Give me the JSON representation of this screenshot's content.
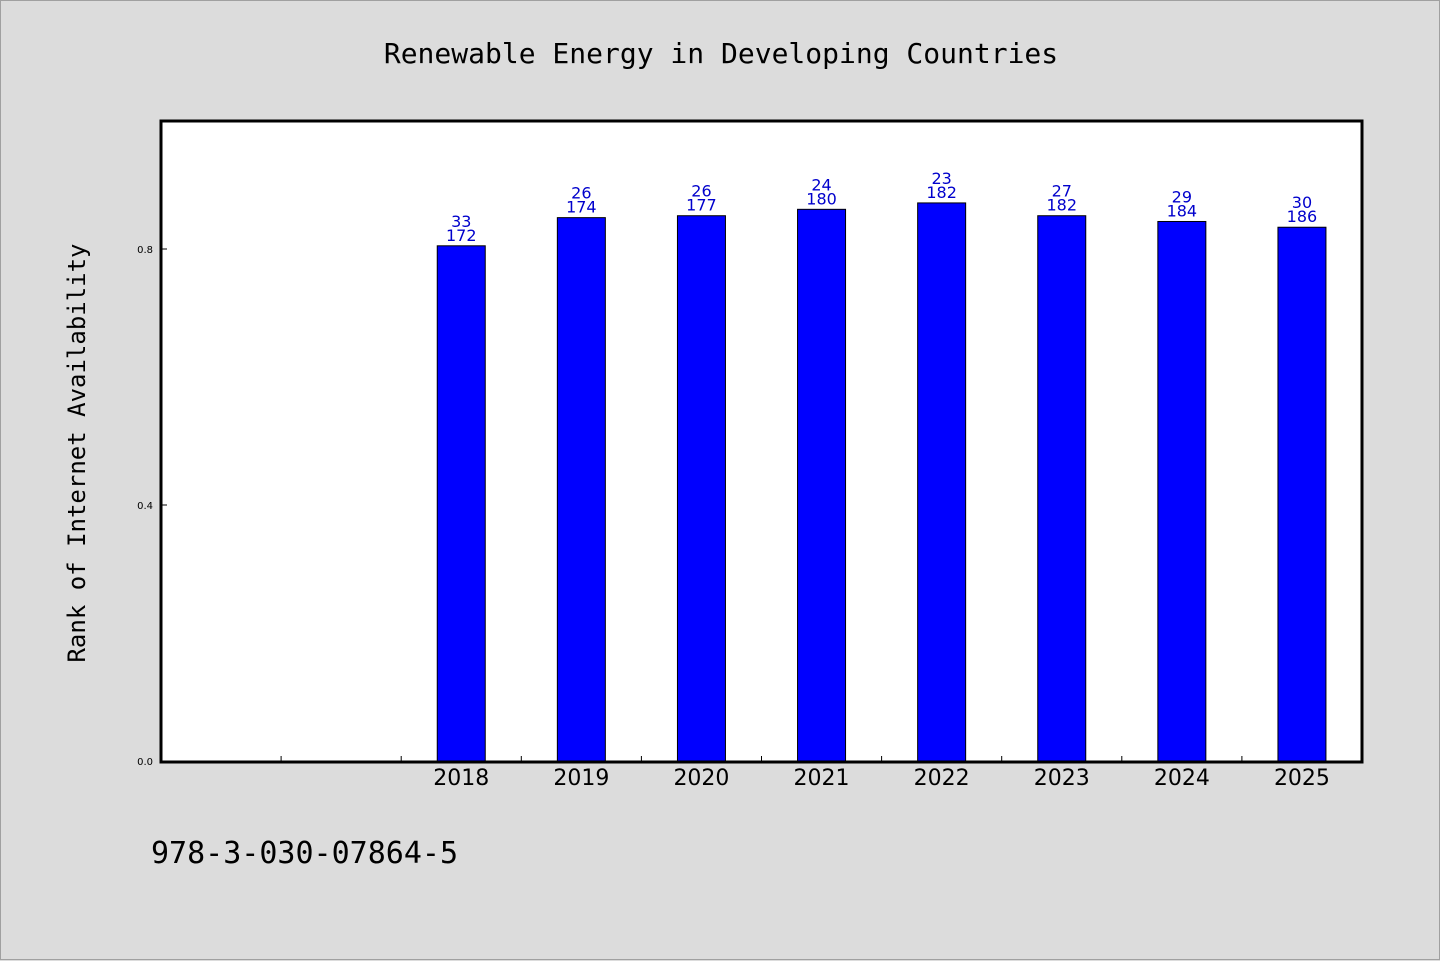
{
  "chart_data": {
    "type": "bar",
    "title": "Renewable Energy in Developing Countries",
    "xlabel": "",
    "ylabel": "Rank of Internet Availability",
    "ylim": [
      0,
      1.0
    ],
    "yticks": [
      "0.0",
      "0.4",
      "0.8"
    ],
    "ytick_values": [
      0.0,
      0.4,
      0.8
    ],
    "categories": [
      "2018",
      "2019",
      "2020",
      "2021",
      "2022",
      "2023",
      "2024",
      "2025"
    ],
    "values": [
      0.805,
      0.849,
      0.852,
      0.862,
      0.872,
      0.852,
      0.843,
      0.834
    ],
    "label_top": [
      "33",
      "26",
      "26",
      "24",
      "23",
      "27",
      "29",
      "30"
    ],
    "label_bottom": [
      "172",
      "174",
      "177",
      "180",
      "182",
      "182",
      "184",
      "186"
    ],
    "bar_color": "#0000ff",
    "label_color": "#0000cc",
    "grid": false,
    "legend": "none"
  },
  "footer_text": "978-3-030-07864-5"
}
